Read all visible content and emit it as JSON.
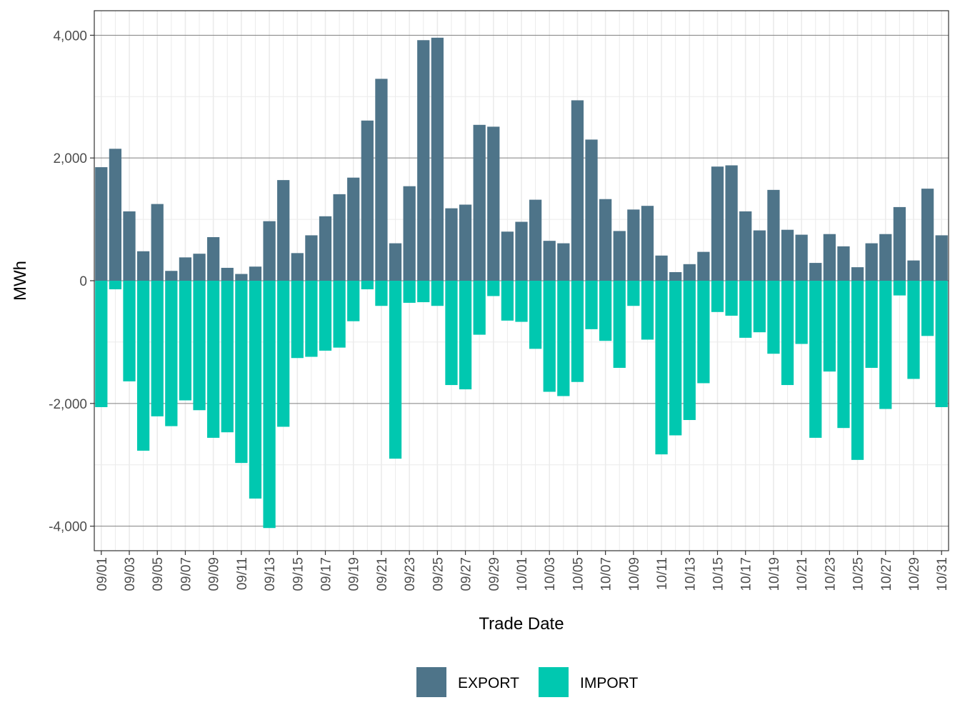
{
  "chart_data": {
    "type": "bar",
    "stacked": "diverging",
    "xlabel": "Trade Date",
    "ylabel": "MWh",
    "ylim": [
      -4400,
      4400
    ],
    "y_ticks": [
      -4000,
      -2000,
      0,
      2000,
      4000
    ],
    "y_tick_labels": [
      "-4,000",
      "-2,000",
      "0",
      "2,000",
      "4,000"
    ],
    "grid": true,
    "legend_position": "bottom",
    "categories": [
      "09/01",
      "09/02",
      "09/03",
      "09/04",
      "09/05",
      "09/06",
      "09/07",
      "09/08",
      "09/09",
      "09/10",
      "09/11",
      "09/12",
      "09/13",
      "09/14",
      "09/15",
      "09/16",
      "09/17",
      "09/18",
      "09/19",
      "09/20",
      "09/21",
      "09/22",
      "09/23",
      "09/24",
      "09/25",
      "09/26",
      "09/27",
      "09/28",
      "09/29",
      "09/30",
      "10/01",
      "10/02",
      "10/03",
      "10/04",
      "10/05",
      "10/06",
      "10/07",
      "10/08",
      "10/09",
      "10/10",
      "10/11",
      "10/12",
      "10/13",
      "10/14",
      "10/15",
      "10/16",
      "10/17",
      "10/18",
      "10/19",
      "10/20",
      "10/21",
      "10/22",
      "10/23",
      "10/24",
      "10/25",
      "10/26",
      "10/27",
      "10/28",
      "10/29",
      "10/30",
      "10/31"
    ],
    "tick_every": 2,
    "series": [
      {
        "name": "EXPORT",
        "color": "#4e7489",
        "values": [
          1850,
          2150,
          1130,
          480,
          1250,
          160,
          380,
          440,
          710,
          210,
          110,
          230,
          970,
          1640,
          450,
          740,
          1050,
          1410,
          1680,
          2610,
          3290,
          610,
          1540,
          3920,
          3960,
          1180,
          1240,
          2540,
          2510,
          800,
          960,
          1320,
          650,
          610,
          2940,
          2300,
          1330,
          810,
          1160,
          1220,
          410,
          140,
          270,
          470,
          1860,
          1880,
          1130,
          820,
          1480,
          830,
          750,
          290,
          760,
          560,
          220,
          610,
          760,
          1200,
          330,
          1500,
          740
        ]
      },
      {
        "name": "IMPORT",
        "color": "#00c8b0",
        "values": [
          -2060,
          -140,
          -1640,
          -2770,
          -2210,
          -2370,
          -1950,
          -2110,
          -2560,
          -2470,
          -2970,
          -3550,
          -4030,
          -2380,
          -1260,
          -1240,
          -1140,
          -1090,
          -660,
          -140,
          -410,
          -2900,
          -360,
          -350,
          -410,
          -1700,
          -1770,
          -880,
          -250,
          -650,
          -670,
          -1110,
          -1810,
          -1880,
          -1650,
          -790,
          -980,
          -1420,
          -410,
          -960,
          -2830,
          -2520,
          -2270,
          -1670,
          -510,
          -570,
          -930,
          -840,
          -1190,
          -1700,
          -1030,
          -2560,
          -1480,
          -2400,
          -2920,
          -1420,
          -2090,
          -240,
          -1600,
          -900,
          -2060
        ]
      }
    ]
  }
}
